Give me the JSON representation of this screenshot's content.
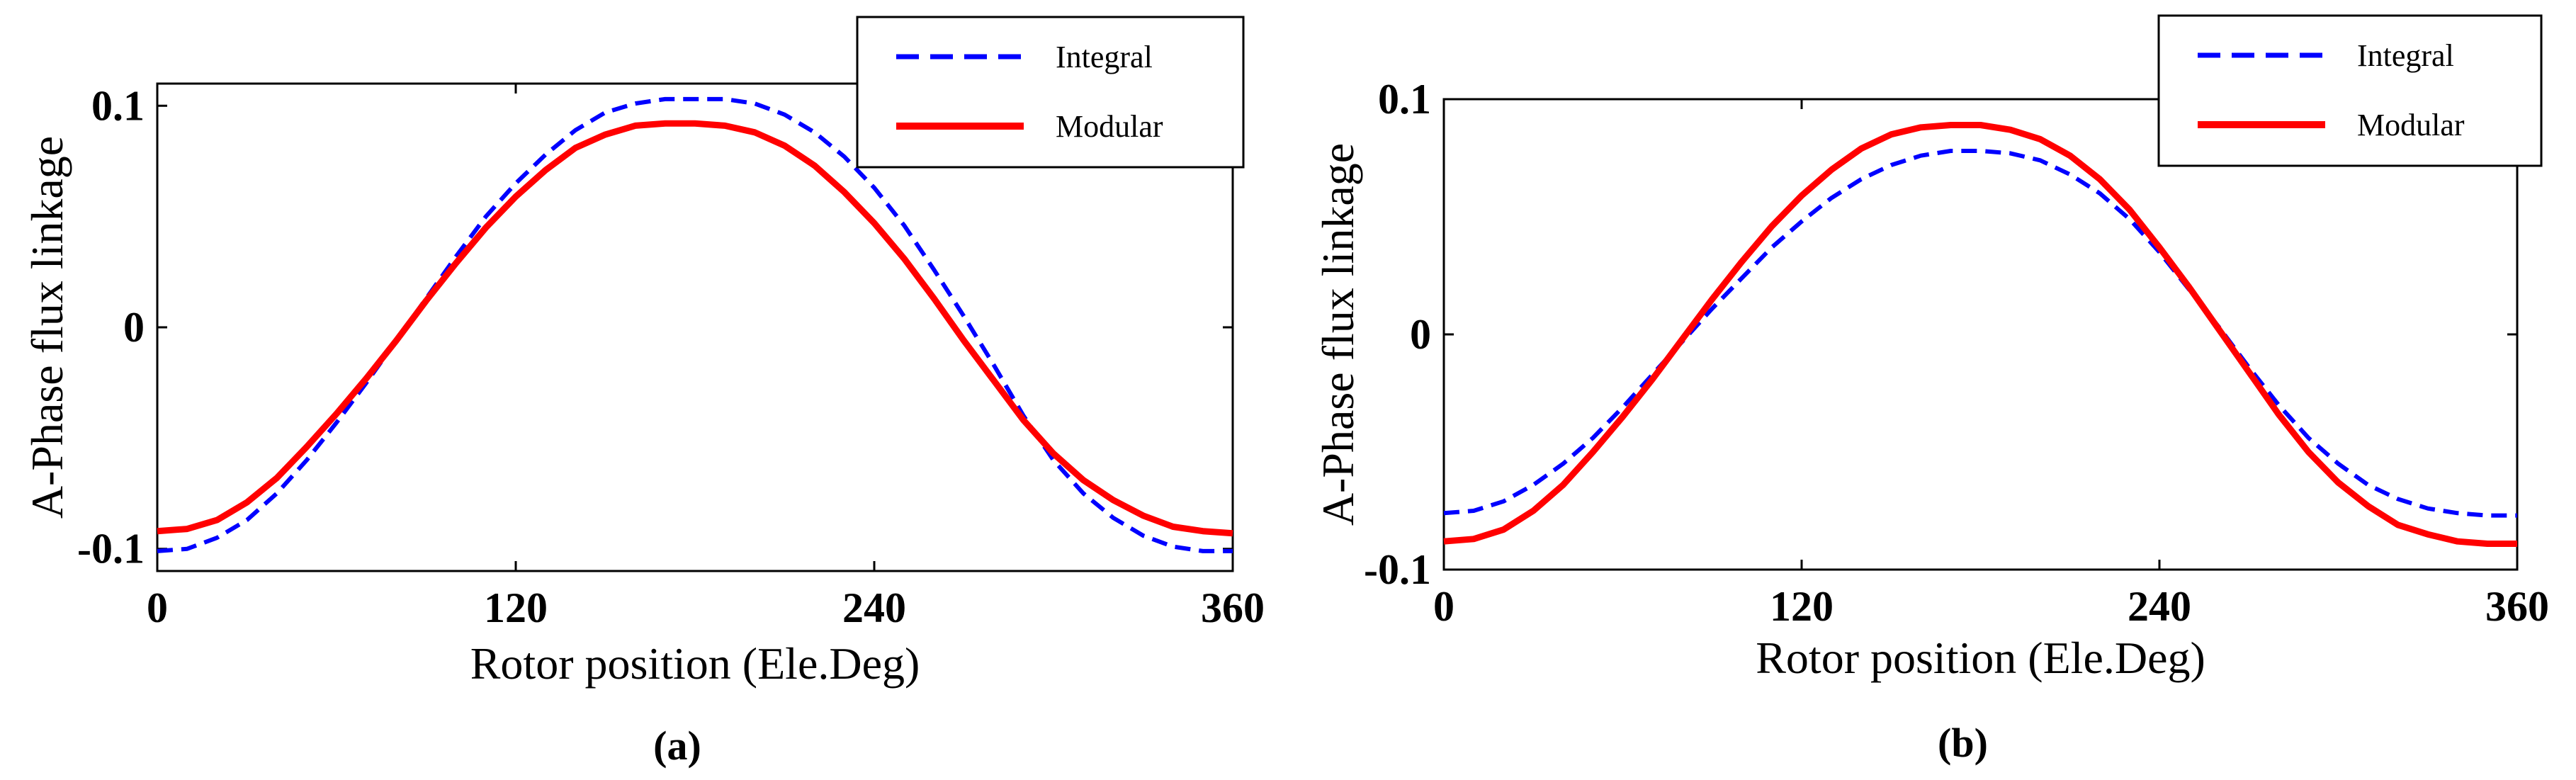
{
  "chart_data": [
    {
      "type": "line",
      "panel_label": "(a)",
      "xlabel": "Rotor position (Ele.Deg)",
      "ylabel": "A-Phase flux linkage",
      "xlim": [
        0,
        360
      ],
      "ylim": [
        -0.11,
        0.11
      ],
      "xticks": [
        0,
        120,
        240,
        360
      ],
      "xtick_labels": [
        "0",
        "120",
        "240",
        "360"
      ],
      "yticks": [
        -0.1,
        0,
        0.1
      ],
      "ytick_labels": [
        "-0.1",
        "0",
        "0.1"
      ],
      "legend": "top-right",
      "series": [
        {
          "name": "Integral",
          "color": "#0000ff",
          "style": "dashed",
          "x": [
            0,
            10,
            20,
            30,
            40,
            50,
            60,
            70,
            80,
            90,
            100,
            110,
            120,
            130,
            140,
            150,
            160,
            170,
            180,
            190,
            200,
            210,
            220,
            230,
            240,
            250,
            260,
            270,
            280,
            290,
            300,
            310,
            320,
            330,
            340,
            350,
            360
          ],
          "y": [
            -0.101,
            -0.1,
            -0.095,
            -0.087,
            -0.075,
            -0.06,
            -0.043,
            -0.025,
            -0.006,
            0.013,
            0.032,
            0.05,
            0.065,
            0.078,
            0.089,
            0.097,
            0.101,
            0.103,
            0.103,
            0.103,
            0.101,
            0.096,
            0.088,
            0.077,
            0.063,
            0.046,
            0.026,
            0.005,
            -0.017,
            -0.04,
            -0.06,
            -0.075,
            -0.086,
            -0.094,
            -0.099,
            -0.101,
            -0.101
          ]
        },
        {
          "name": "Modular",
          "color": "#ff0000",
          "style": "solid",
          "x": [
            0,
            10,
            20,
            30,
            40,
            50,
            60,
            70,
            80,
            90,
            100,
            110,
            120,
            130,
            140,
            150,
            160,
            170,
            180,
            190,
            200,
            210,
            220,
            230,
            240,
            250,
            260,
            270,
            280,
            290,
            300,
            310,
            320,
            330,
            340,
            350,
            360
          ],
          "y": [
            -0.092,
            -0.091,
            -0.087,
            -0.079,
            -0.068,
            -0.054,
            -0.039,
            -0.023,
            -0.006,
            0.012,
            0.029,
            0.045,
            0.059,
            0.071,
            0.081,
            0.087,
            0.091,
            0.092,
            0.092,
            0.091,
            0.088,
            0.082,
            0.073,
            0.061,
            0.047,
            0.031,
            0.013,
            -0.006,
            -0.024,
            -0.042,
            -0.057,
            -0.069,
            -0.078,
            -0.085,
            -0.09,
            -0.092,
            -0.093
          ]
        }
      ]
    },
    {
      "type": "line",
      "panel_label": "(b)",
      "xlabel": "Rotor position (Ele.Deg)",
      "ylabel": "A-Phase flux linkage",
      "xlim": [
        0,
        360
      ],
      "ylim": [
        -0.1,
        0.1
      ],
      "xticks": [
        0,
        120,
        240,
        360
      ],
      "xtick_labels": [
        "0",
        "120",
        "240",
        "360"
      ],
      "yticks": [
        -0.1,
        0,
        0.1
      ],
      "ytick_labels": [
        "-0.1",
        "0",
        "0.1"
      ],
      "legend": "top-right",
      "series": [
        {
          "name": "Integral",
          "color": "#0000ff",
          "style": "dashed",
          "x": [
            0,
            10,
            20,
            30,
            40,
            50,
            60,
            70,
            80,
            90,
            100,
            110,
            120,
            130,
            140,
            150,
            160,
            170,
            180,
            190,
            200,
            210,
            220,
            230,
            240,
            250,
            260,
            270,
            280,
            290,
            300,
            310,
            320,
            330,
            340,
            350,
            360
          ],
          "y": [
            -0.076,
            -0.075,
            -0.071,
            -0.064,
            -0.055,
            -0.044,
            -0.031,
            -0.017,
            -0.003,
            0.011,
            0.024,
            0.037,
            0.048,
            0.058,
            0.066,
            0.072,
            0.076,
            0.078,
            0.078,
            0.077,
            0.074,
            0.068,
            0.06,
            0.049,
            0.035,
            0.019,
            0.003,
            -0.014,
            -0.03,
            -0.044,
            -0.055,
            -0.064,
            -0.07,
            -0.074,
            -0.076,
            -0.077,
            -0.077
          ]
        },
        {
          "name": "Modular",
          "color": "#ff0000",
          "style": "solid",
          "x": [
            0,
            10,
            20,
            30,
            40,
            50,
            60,
            70,
            80,
            90,
            100,
            110,
            120,
            130,
            140,
            150,
            160,
            170,
            180,
            190,
            200,
            210,
            220,
            230,
            240,
            250,
            260,
            270,
            280,
            290,
            300,
            310,
            320,
            330,
            340,
            350,
            360
          ],
          "y": [
            -0.088,
            -0.087,
            -0.083,
            -0.075,
            -0.064,
            -0.05,
            -0.035,
            -0.019,
            -0.002,
            0.015,
            0.031,
            0.046,
            0.059,
            0.07,
            0.079,
            0.085,
            0.088,
            0.089,
            0.089,
            0.087,
            0.083,
            0.076,
            0.066,
            0.053,
            0.037,
            0.02,
            0.002,
            -0.016,
            -0.034,
            -0.05,
            -0.063,
            -0.073,
            -0.081,
            -0.085,
            -0.088,
            -0.089,
            -0.089
          ]
        }
      ]
    }
  ]
}
